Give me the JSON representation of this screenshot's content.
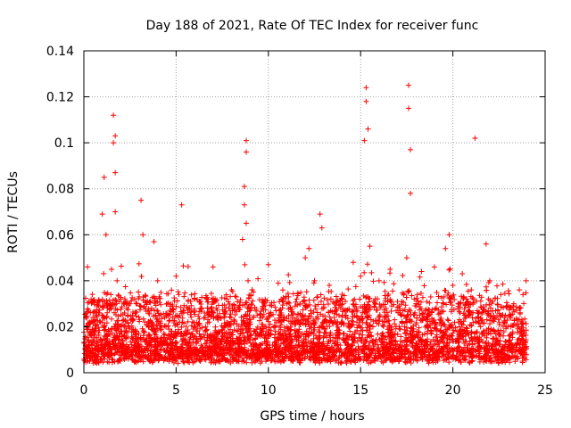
{
  "chart_data": {
    "type": "scatter",
    "title": "Day 188 of 2021, Rate Of TEC Index for receiver func",
    "xlabel": "GPS time / hours",
    "ylabel": "ROTI / TECUs",
    "xlim": [
      0,
      25
    ],
    "ylim": [
      0,
      0.14
    ],
    "x_ticks": [
      0,
      5,
      10,
      15,
      20,
      25
    ],
    "y_ticks": [
      0,
      0.02,
      0.04,
      0.06,
      0.08,
      0.1,
      0.12,
      0.14
    ],
    "x_tick_labels": [
      "0",
      "5",
      "10",
      "15",
      "20",
      "25"
    ],
    "y_tick_labels": [
      "0",
      "0.02",
      "0.04",
      "0.06",
      "0.08",
      "0.1",
      "0.12",
      "0.14"
    ],
    "grid": true,
    "marker": "+",
    "color": "#ff0000",
    "series": [
      {
        "name": "ROTI",
        "x": [
          0.1,
          0.2,
          0.3,
          0.4,
          0.5,
          0.6,
          0.8,
          1.0,
          1.1,
          1.2,
          1.2,
          1.3,
          1.5,
          1.6,
          1.6,
          1.7,
          1.7,
          1.7,
          1.8,
          1.8,
          2.0,
          2.2,
          2.5,
          2.8,
          3.0,
          3.1,
          3.2,
          3.3,
          3.5,
          3.8,
          4.0,
          4.2,
          4.5,
          4.8,
          5.0,
          5.3,
          5.5,
          5.8,
          6.0,
          6.3,
          6.6,
          7.0,
          7.3,
          7.6,
          8.0,
          8.3,
          8.6,
          8.7,
          8.7,
          8.8,
          8.8,
          8.8,
          8.9,
          9.0,
          9.3,
          9.6,
          10.0,
          10.3,
          10.6,
          11.0,
          11.3,
          11.6,
          12.0,
          12.2,
          12.5,
          12.8,
          12.9,
          13.0,
          13.3,
          13.6,
          14.0,
          14.3,
          14.6,
          15.0,
          15.2,
          15.3,
          15.3,
          15.4,
          15.4,
          15.5,
          15.8,
          16.0,
          16.3,
          16.6,
          17.0,
          17.3,
          17.5,
          17.6,
          17.6,
          17.7,
          17.7,
          18.0,
          18.3,
          18.6,
          19.0,
          19.3,
          19.6,
          19.8,
          20.0,
          20.3,
          20.6,
          21.0,
          21.2,
          21.5,
          21.8,
          22.0,
          22.3,
          22.6,
          23.0,
          23.3,
          23.6,
          23.8
        ],
        "y": [
          0.012,
          0.046,
          0.022,
          0.016,
          0.031,
          0.018,
          0.026,
          0.069,
          0.085,
          0.014,
          0.06,
          0.03,
          0.045,
          0.1,
          0.112,
          0.07,
          0.087,
          0.103,
          0.02,
          0.04,
          0.018,
          0.026,
          0.03,
          0.015,
          0.033,
          0.075,
          0.06,
          0.022,
          0.02,
          0.057,
          0.04,
          0.014,
          0.03,
          0.024,
          0.042,
          0.073,
          0.018,
          0.012,
          0.032,
          0.028,
          0.02,
          0.046,
          0.018,
          0.024,
          0.036,
          0.015,
          0.058,
          0.081,
          0.073,
          0.101,
          0.096,
          0.065,
          0.04,
          0.022,
          0.018,
          0.024,
          0.047,
          0.02,
          0.031,
          0.03,
          0.024,
          0.018,
          0.05,
          0.054,
          0.04,
          0.069,
          0.063,
          0.028,
          0.038,
          0.022,
          0.032,
          0.016,
          0.048,
          0.042,
          0.101,
          0.118,
          0.124,
          0.106,
          0.033,
          0.055,
          0.03,
          0.04,
          0.022,
          0.045,
          0.031,
          0.027,
          0.05,
          0.115,
          0.125,
          0.097,
          0.078,
          0.03,
          0.044,
          0.02,
          0.046,
          0.026,
          0.054,
          0.06,
          0.038,
          0.022,
          0.018,
          0.036,
          0.102,
          0.02,
          0.056,
          0.04,
          0.024,
          0.034,
          0.02,
          0.03,
          0.036,
          0.034
        ]
      }
    ],
    "noise_band": {
      "y_min": 0.004,
      "y_typical_max": 0.03,
      "point_density_per_hour": 180
    }
  }
}
